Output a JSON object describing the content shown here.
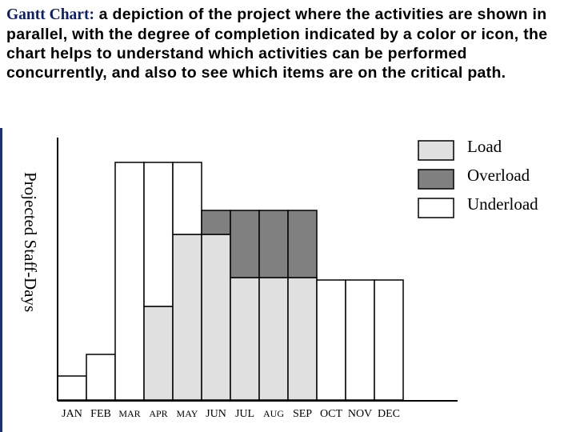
{
  "heading": {
    "lead": "Gantt Chart:",
    "rest": " a depiction of the project where the activities are shown in parallel,  with the degree of completion indicated by a color or icon, the chart helps to understand which activities can be performed concurrently, and also to see which items are on the critical path."
  },
  "colors": {
    "load": "#e0e0e0",
    "overload": "#808080",
    "underload": "#ffffff",
    "frame": "#1e2f7a",
    "heading_lead": "#0b1f6e"
  },
  "chart_data": {
    "type": "bar",
    "stacked": true,
    "categories": [
      "JAN",
      "FEB",
      "MAR",
      "APR",
      "MAY",
      "JUN",
      "JUL",
      "AUG",
      "SEP",
      "OCT",
      "NOV",
      "DEC"
    ],
    "ylabel": "Projected Staff-Days",
    "grid": false,
    "legend_position": "top-right",
    "series": [
      {
        "name": "Load",
        "color": "#e0e0e0",
        "values": [
          0,
          0,
          0,
          39,
          69,
          69,
          51,
          51,
          51,
          0,
          0,
          0
        ]
      },
      {
        "name": "Overload",
        "color": "#808080",
        "values": [
          0,
          0,
          0,
          0,
          0,
          10,
          28,
          28,
          28,
          0,
          0,
          0
        ]
      },
      {
        "name": "Underload",
        "color": "#ffffff",
        "values": [
          10,
          19,
          99,
          60,
          30,
          0,
          0,
          0,
          0,
          50,
          50,
          50
        ]
      }
    ],
    "ylim": [
      0,
      110
    ]
  }
}
